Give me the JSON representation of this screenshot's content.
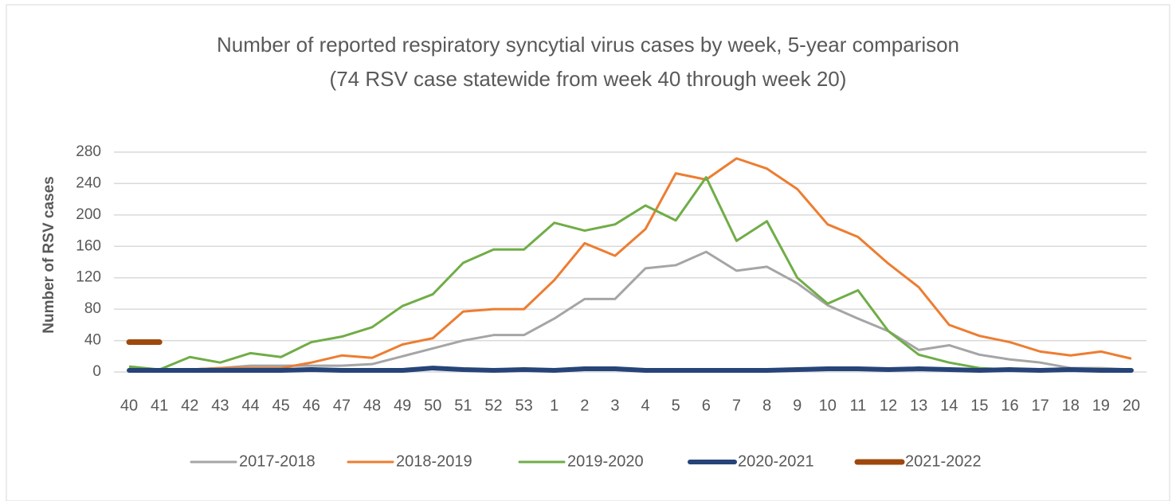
{
  "chart_data": {
    "type": "line",
    "title": "Number of reported respiratory syncytial virus cases by week, 5-year comparison",
    "subtitle": "(74 RSV case statewide from week 40 through week 20)",
    "y_label": "Number of RSV cases",
    "categories": [
      "40",
      "41",
      "42",
      "43",
      "44",
      "45",
      "46",
      "47",
      "48",
      "49",
      "50",
      "51",
      "52",
      "53",
      "1",
      "2",
      "3",
      "4",
      "5",
      "6",
      "7",
      "8",
      "9",
      "10",
      "11",
      "12",
      "13",
      "14",
      "15",
      "16",
      "17",
      "18",
      "19",
      "20"
    ],
    "series": [
      {
        "name": "2017-2018",
        "color": "#a5a5a5",
        "width": 3,
        "values": [
          5,
          3,
          3,
          5,
          8,
          8,
          8,
          8,
          10,
          20,
          30,
          40,
          47,
          47,
          68,
          93,
          93,
          132,
          136,
          153,
          129,
          134,
          113,
          85,
          68,
          52,
          28,
          34,
          22,
          16,
          12,
          5,
          5,
          3
        ]
      },
      {
        "name": "2018-2019",
        "color": "#ed7d31",
        "width": 3,
        "values": [
          3,
          3,
          3,
          5,
          5,
          5,
          12,
          21,
          18,
          35,
          43,
          77,
          80,
          80,
          117,
          164,
          148,
          182,
          253,
          245,
          272,
          259,
          233,
          188,
          172,
          138,
          108,
          60,
          46,
          38,
          26,
          21,
          26,
          17
        ]
      },
      {
        "name": "2019-2020",
        "color": "#70ad47",
        "width": 3,
        "values": [
          7,
          3,
          19,
          12,
          24,
          19,
          38,
          45,
          57,
          84,
          99,
          139,
          156,
          156,
          190,
          180,
          188,
          212,
          193,
          248,
          167,
          192,
          120,
          87,
          104,
          52,
          22,
          12,
          5,
          3,
          2,
          3,
          2,
          2
        ]
      },
      {
        "name": "2020-2021",
        "color": "#264478",
        "width": 6,
        "values": [
          2,
          2,
          2,
          2,
          2,
          2,
          3,
          2,
          2,
          2,
          5,
          3,
          2,
          3,
          2,
          4,
          4,
          2,
          2,
          2,
          2,
          2,
          3,
          4,
          4,
          3,
          4,
          3,
          2,
          3,
          2,
          3,
          2,
          2
        ]
      },
      {
        "name": "2021-2022",
        "color": "#9e480e",
        "width": 7,
        "values": [
          38,
          38,
          null,
          null,
          null,
          null,
          null,
          null,
          null,
          null,
          null,
          null,
          null,
          null,
          null,
          null,
          null,
          null,
          null,
          null,
          null,
          null,
          null,
          null,
          null,
          null,
          null,
          null,
          null,
          null,
          null,
          null,
          null,
          null
        ]
      }
    ],
    "ylim": [
      0,
      280
    ],
    "yticks": [
      0,
      40,
      80,
      120,
      160,
      200,
      240,
      280
    ],
    "grid": true
  }
}
